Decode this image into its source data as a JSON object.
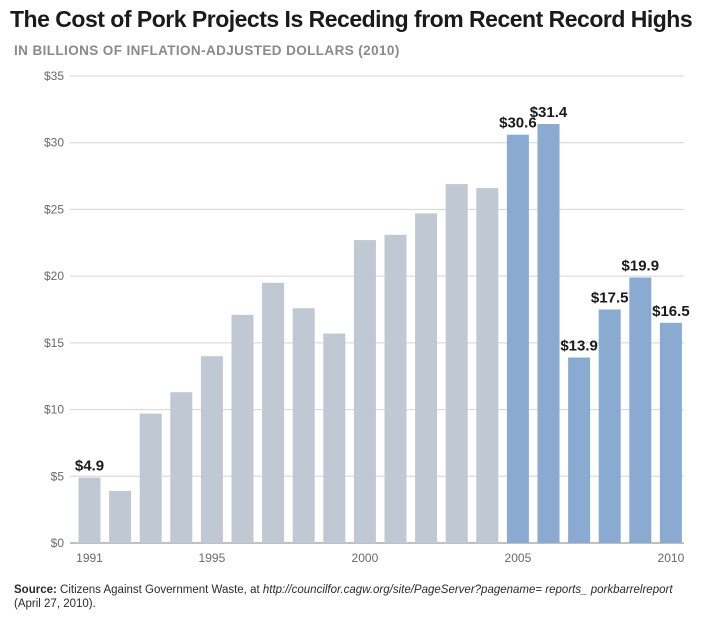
{
  "header": {
    "title": "The Cost of Pork Projects Is Receding from Recent Record Highs",
    "subtitle": "IN BILLIONS OF INFLATION-ADJUSTED DOLLARS (2010)"
  },
  "source": {
    "lead": "Source:",
    "text": " Citizens Against Government Waste, at ",
    "url": "http://councilfor.cagw.org/site/PageServer?pagename= reports_ porkbarrelreport",
    "date": " (April 27, 2010)."
  },
  "colors": {
    "historic": "#c0c8d3",
    "recent": "#8aaad2",
    "grid": "#d4d4d4"
  },
  "chart_data": {
    "type": "bar",
    "categories": [
      "1991",
      "1992",
      "1993",
      "1994",
      "1995",
      "1996",
      "1997",
      "1998",
      "1999",
      "2000",
      "2001",
      "2002",
      "2003",
      "2004",
      "2005",
      "2006",
      "2007",
      "2008",
      "2009",
      "2010"
    ],
    "values": [
      4.9,
      3.9,
      9.7,
      11.3,
      14.0,
      17.1,
      19.5,
      17.6,
      15.7,
      22.7,
      23.1,
      24.7,
      26.9,
      26.6,
      30.6,
      31.4,
      13.9,
      17.5,
      19.9,
      16.5
    ],
    "highlight_from": "2005",
    "data_labels": [
      {
        "category": "1991",
        "text": "$4.9"
      },
      {
        "category": "2005",
        "text": "$30.6"
      },
      {
        "category": "2006",
        "text": "$31.4"
      },
      {
        "category": "2007",
        "text": "$13.9"
      },
      {
        "category": "2008",
        "text": "$17.5"
      },
      {
        "category": "2009",
        "text": "$19.9"
      },
      {
        "category": "2010",
        "text": "$16.5"
      }
    ],
    "x_tick_labels": [
      "1991",
      "1995",
      "2000",
      "2005",
      "2010"
    ],
    "y_ticks": [
      {
        "value": 0,
        "label": "$0"
      },
      {
        "value": 5,
        "label": "$5"
      },
      {
        "value": 10,
        "label": "$10"
      },
      {
        "value": 15,
        "label": "$15"
      },
      {
        "value": 20,
        "label": "$20"
      },
      {
        "value": 25,
        "label": "$25"
      },
      {
        "value": 30,
        "label": "$30"
      },
      {
        "value": 35,
        "label": "$35"
      }
    ],
    "ylim": [
      0,
      35
    ],
    "grid": true,
    "legend": false
  }
}
